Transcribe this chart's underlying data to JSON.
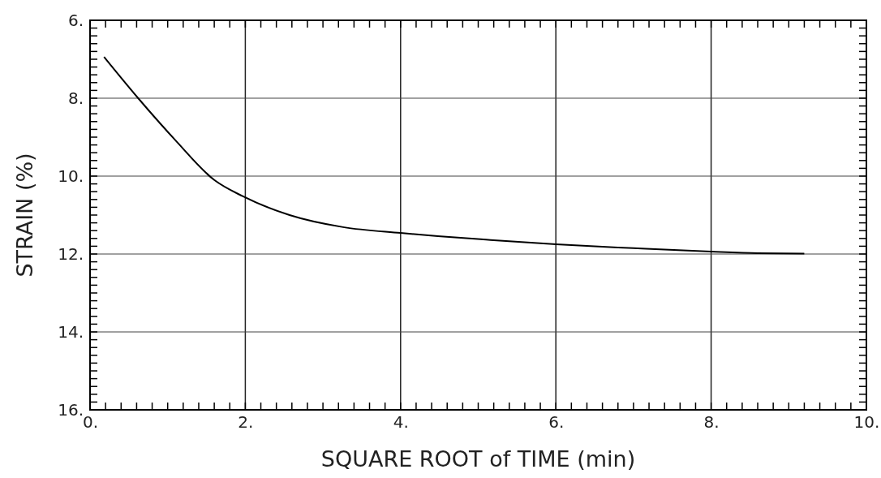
{
  "chart_data": {
    "type": "line",
    "xlabel": "SQUARE ROOT of TIME (min)",
    "ylabel": "STRAIN (%)",
    "xlim": [
      0,
      10
    ],
    "ylim": [
      16,
      6
    ],
    "xticks": [
      {
        "value": 0,
        "label": "0."
      },
      {
        "value": 2,
        "label": "2."
      },
      {
        "value": 4,
        "label": "4."
      },
      {
        "value": 6,
        "label": "6."
      },
      {
        "value": 8,
        "label": "8."
      },
      {
        "value": 10,
        "label": "10."
      }
    ],
    "yticks": [
      {
        "value": 6,
        "label": "6."
      },
      {
        "value": 8,
        "label": "8."
      },
      {
        "value": 10,
        "label": "10."
      },
      {
        "value": 12,
        "label": "12."
      },
      {
        "value": 14,
        "label": "14."
      },
      {
        "value": 16,
        "label": "16."
      }
    ],
    "grid": true,
    "marker": "none",
    "line_style": "solid",
    "series": [
      {
        "color": "#000000",
        "x": [
          0.18,
          0.62,
          1.1,
          1.6,
          1.97,
          2.57,
          3.26,
          4.0,
          4.48,
          5.1,
          6.0,
          7.0,
          8.0,
          8.6,
          9.2
        ],
        "values": [
          6.94,
          8.0,
          9.08,
          10.1,
          10.52,
          11.0,
          11.31,
          11.46,
          11.54,
          11.63,
          11.75,
          11.85,
          11.94,
          11.98,
          11.99
        ]
      }
    ]
  }
}
